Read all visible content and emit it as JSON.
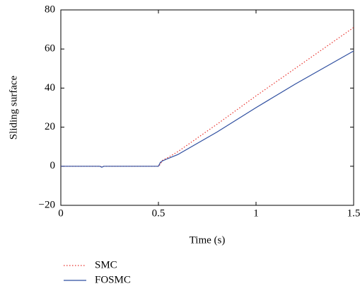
{
  "chart_data": {
    "type": "line",
    "xlabel": "Time (s)",
    "ylabel": "Sliding surface",
    "x": [
      0,
      0.2,
      0.21,
      0.22,
      0.5,
      0.51,
      0.52,
      0.55,
      0.6,
      0.8,
      1.0,
      1.2,
      1.5
    ],
    "series": [
      {
        "name": "SMC",
        "color": "#e8322c",
        "dash": "dotted",
        "values": [
          0,
          0,
          -0.3,
          0,
          0,
          1,
          3,
          4.5,
          7.5,
          21.5,
          36,
          50,
          71
        ]
      },
      {
        "name": "FOSMC",
        "color": "#2f4fa0",
        "dash": "solid",
        "values": [
          0,
          0,
          -0.5,
          0,
          0,
          2,
          2.7,
          4,
          6,
          17.5,
          30,
          42,
          59
        ]
      }
    ],
    "xlim": [
      0,
      1.5
    ],
    "xticks": [
      0,
      0.5,
      1,
      1.5
    ],
    "ylim": [
      -20,
      80
    ],
    "yticks": [
      {
        "value": -20,
        "label": "−20"
      },
      0,
      20,
      40,
      60,
      80
    ],
    "legend": "below"
  }
}
